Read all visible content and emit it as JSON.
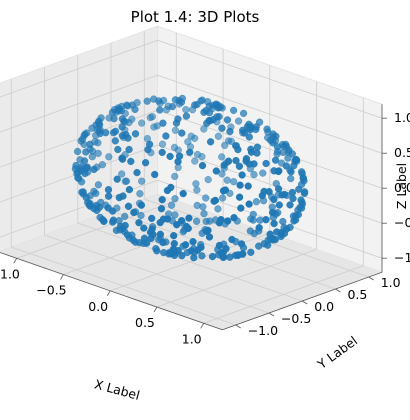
{
  "chart_data": {
    "type": "scatter",
    "projection": "3d",
    "title": "Plot 1.4: 3D Plots",
    "xlabel": "X Label",
    "ylabel": "Y Label",
    "zlabel": "Z Label",
    "xlim": [
      -1.0,
      1.0
    ],
    "ylim": [
      -1.0,
      1.0
    ],
    "zlim": [
      -1.0,
      1.0
    ],
    "x_ticks": [
      "−1.0",
      "−0.5",
      "0.0",
      "0.5",
      "1.0"
    ],
    "y_ticks": [
      "−1.0",
      "−0.5",
      "0.0",
      "0.5",
      "1.0"
    ],
    "z_ticks": [
      "−1.0",
      "−0.5",
      "0.0",
      "0.5",
      "1.0"
    ],
    "grid": true,
    "marker_color": "#1f77b4",
    "n_points": 500,
    "shape": "points on the surface of a unit sphere (random directions, radius 1)"
  }
}
